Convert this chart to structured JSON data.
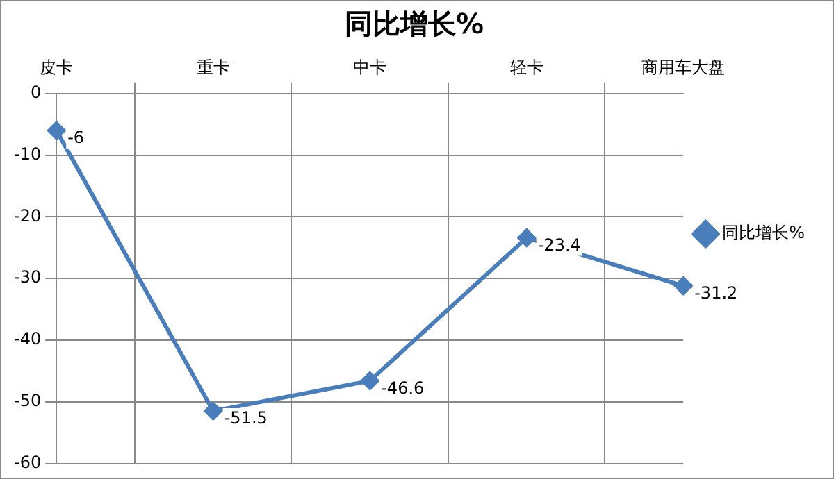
{
  "chart_data": {
    "type": "line",
    "title": "同比增长%",
    "categories": [
      "皮卡",
      "重卡",
      "中卡",
      "轻卡",
      "商用车大盘"
    ],
    "series": [
      {
        "name": "同比增长%",
        "color": "#4a7ebb",
        "values": [
          -6,
          -51.5,
          -46.6,
          -23.4,
          -31.2
        ]
      }
    ],
    "ylim": [
      -60,
      0
    ],
    "yticks": [
      -60,
      -50,
      -40,
      -30,
      -20,
      -10,
      0
    ],
    "grid": true,
    "legend": "right",
    "marker": "diamond",
    "data_labels": true
  }
}
